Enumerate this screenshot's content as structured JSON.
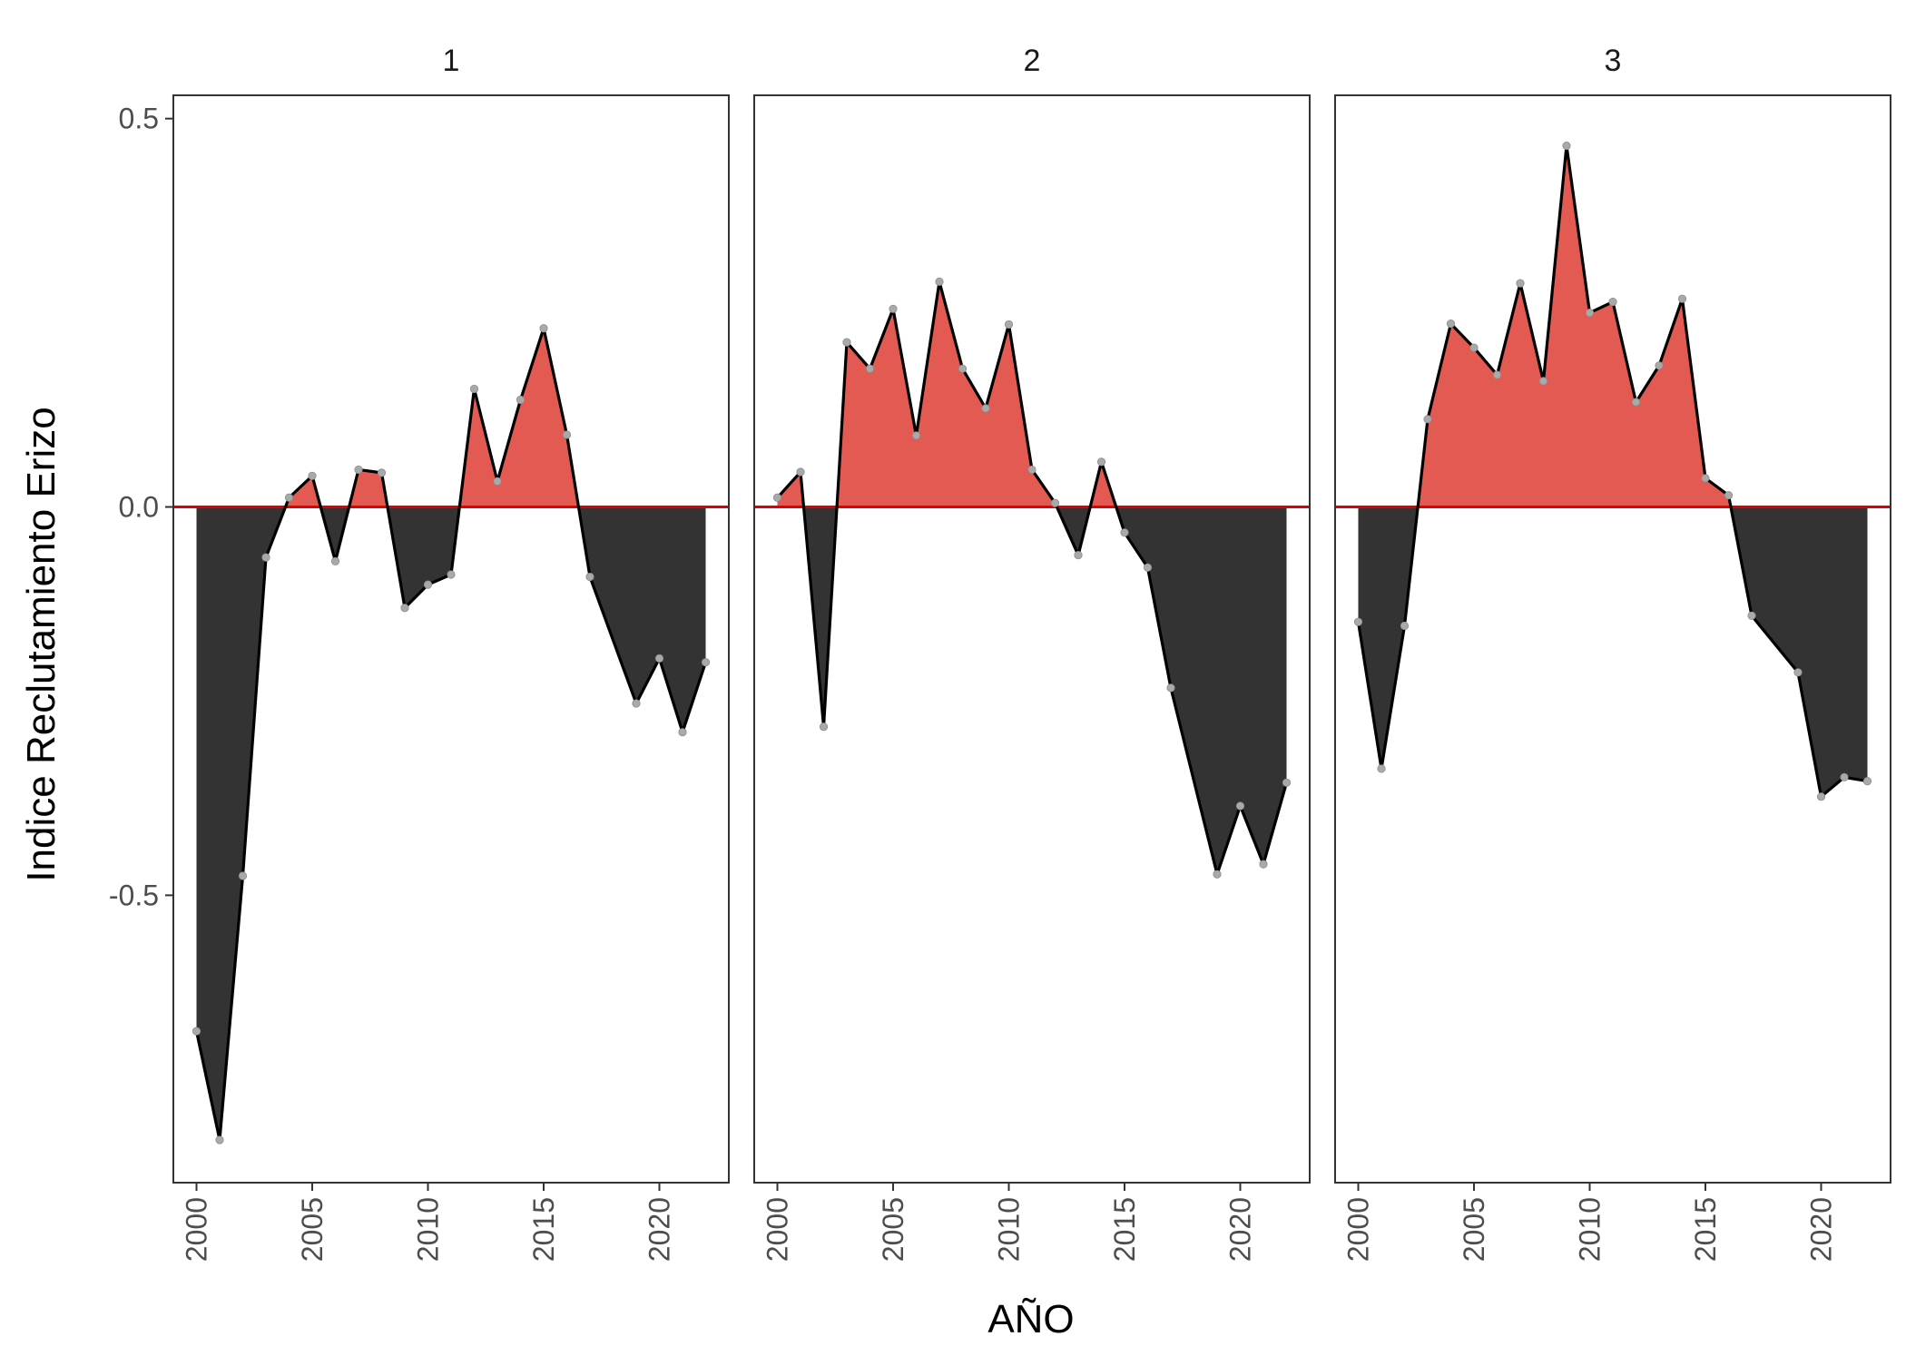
{
  "chart_data": {
    "type": "area",
    "xlabel": "AÑO",
    "ylabel": "Indice Reclutamiento Erizo",
    "xlim": [
      1999,
      2023
    ],
    "ylim": [
      -0.87,
      0.53
    ],
    "x_ticks": [
      2000,
      2005,
      2010,
      2015,
      2020
    ],
    "y_ticks": [
      -0.5,
      0.0,
      0.5
    ],
    "y_tick_labels": [
      "-0.5",
      "0.0",
      "0.5"
    ],
    "reference_line": 0,
    "colors": {
      "positive_fill": "#e35a52",
      "negative_fill": "#333333",
      "line": "#000000",
      "points": "#a9a9a9",
      "reference_line": "#e00000",
      "panel_border": "#333333"
    },
    "panels": [
      {
        "label": "1",
        "x": [
          2000,
          2001,
          2002,
          2003,
          2004,
          2005,
          2006,
          2007,
          2008,
          2009,
          2010,
          2011,
          2012,
          2013,
          2014,
          2015,
          2016,
          2017,
          2019,
          2020,
          2021,
          2022
        ],
        "y": [
          -0.675,
          -0.815,
          -0.475,
          -0.065,
          0.012,
          0.04,
          -0.07,
          0.048,
          0.044,
          -0.13,
          -0.1,
          -0.087,
          0.152,
          0.033,
          0.138,
          0.23,
          0.093,
          -0.09,
          -0.253,
          -0.195,
          -0.29,
          -0.2
        ]
      },
      {
        "label": "2",
        "x": [
          2000,
          2001,
          2002,
          2003,
          2004,
          2005,
          2006,
          2007,
          2008,
          2009,
          2010,
          2011,
          2012,
          2013,
          2014,
          2015,
          2016,
          2017,
          2019,
          2020,
          2021,
          2022
        ],
        "y": [
          0.012,
          0.045,
          -0.283,
          0.212,
          0.178,
          0.255,
          0.092,
          0.29,
          0.178,
          0.127,
          0.235,
          0.048,
          0.005,
          -0.062,
          0.058,
          -0.033,
          -0.078,
          -0.233,
          -0.473,
          -0.385,
          -0.46,
          -0.355
        ]
      },
      {
        "label": "3",
        "x": [
          2000,
          2001,
          2002,
          2003,
          2004,
          2005,
          2006,
          2007,
          2008,
          2009,
          2010,
          2011,
          2012,
          2013,
          2014,
          2015,
          2016,
          2017,
          2019,
          2020,
          2021,
          2022
        ],
        "y": [
          -0.148,
          -0.337,
          -0.153,
          0.113,
          0.236,
          0.205,
          0.17,
          0.288,
          0.162,
          0.465,
          0.25,
          0.264,
          0.135,
          0.182,
          0.268,
          0.037,
          0.015,
          -0.14,
          -0.213,
          -0.373,
          -0.348,
          -0.353
        ]
      }
    ]
  }
}
